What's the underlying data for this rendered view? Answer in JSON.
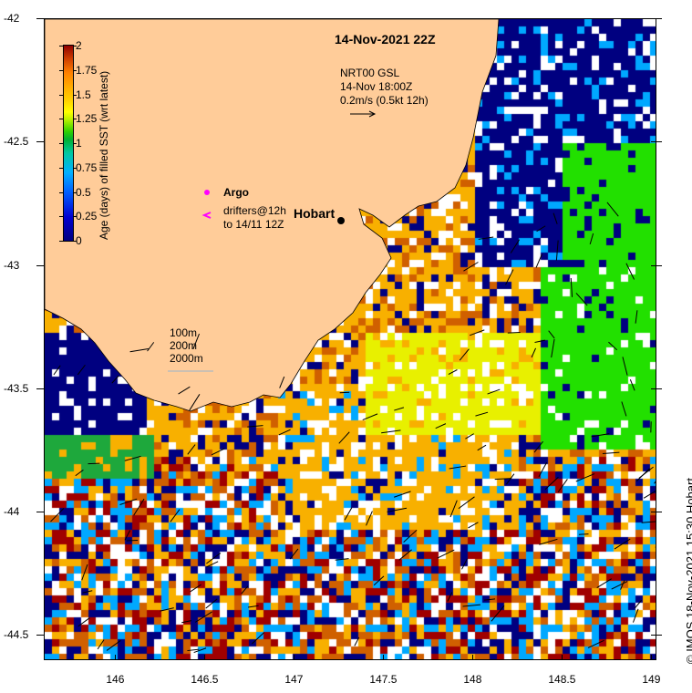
{
  "title": "14-Nov-2021 22Z",
  "currents": {
    "product": "NRT00 GSL",
    "time": "14-Nov 18:00Z",
    "scale": "0.2m/s (0.5kt 12h)"
  },
  "legend": {
    "argo": "Argo",
    "drifters_line1": "drifters@12h",
    "drifters_line2": "to 14/11 12Z"
  },
  "colorbar": {
    "label": "Age (days) of filled SST (wrt latest)",
    "ticks": [
      "0",
      "0.25",
      "0.5",
      "0.75",
      "1",
      "1.25",
      "1.5",
      "1.75",
      "2"
    ],
    "range": [
      0,
      2
    ]
  },
  "city": "Hobart",
  "depth_legend": [
    "100m",
    "200m",
    "2000m"
  ],
  "x_axis": {
    "ticks": [
      "146",
      "146.5",
      "147",
      "147.5",
      "148",
      "148.5",
      "149"
    ],
    "range": [
      145.6,
      149.02
    ]
  },
  "y_axis": {
    "ticks": [
      "-42",
      "-42.5",
      "-43",
      "-43.5",
      "-44",
      "-44.5"
    ],
    "range": [
      -44.6,
      -42
    ]
  },
  "credit": "© IMOS 18-Nov-2021 15:30 Hobart",
  "colors": {
    "land": "#ffcc99",
    "argo": "#ff00ff",
    "navy": "#000080",
    "green": "#22e000",
    "yellow": "#e8f000",
    "orange": "#f8b000",
    "darkorange": "#d06000",
    "red": "#a00000",
    "lightblue": "#00a8ff"
  }
}
